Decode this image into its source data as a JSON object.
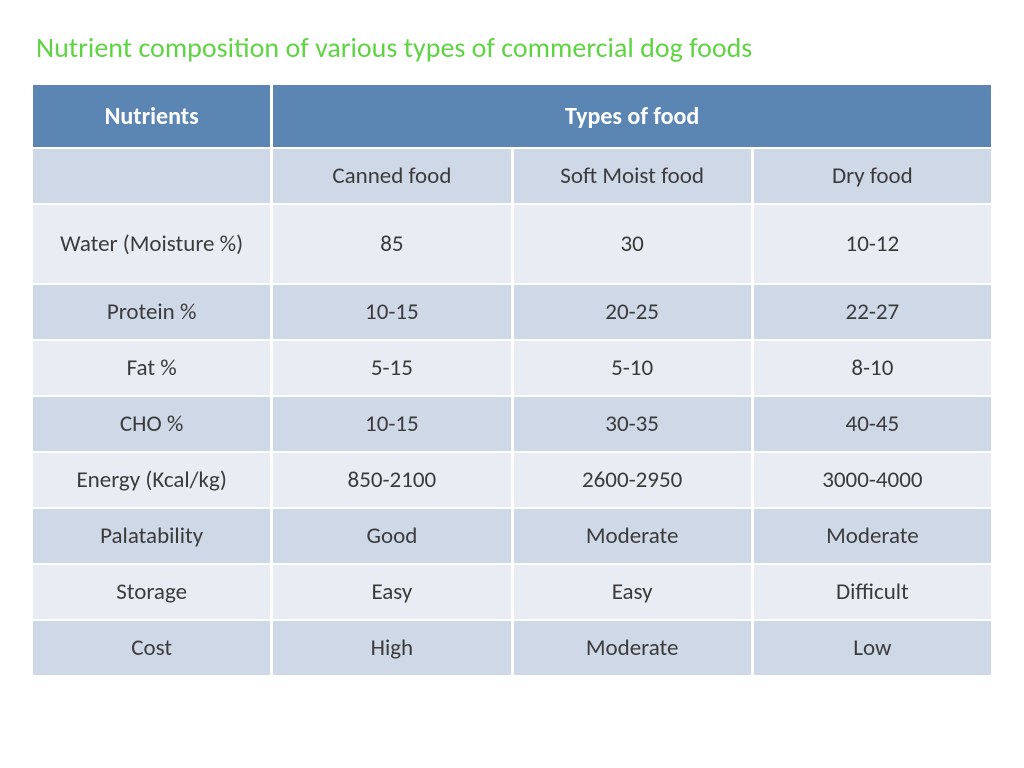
{
  "title": "Nutrient composition of various types of commercial dog foods",
  "title_color": "#5fd443",
  "table": {
    "header_bg": "#5b86b4",
    "header_text_color": "#ffffff",
    "row_alt_light": "#e8edf3",
    "row_alt_dark": "#cfd8e7",
    "cell_text_color": "#3b3b3b",
    "col1_header": "Nutrients",
    "col_span_header": "Types of food",
    "subheaders": [
      "Canned food",
      "Soft Moist food",
      "Dry food"
    ],
    "rows": [
      {
        "label": "Water (Moisture %)",
        "cells": [
          "85",
          "30",
          "10-12"
        ]
      },
      {
        "label": "Protein %",
        "cells": [
          "10-15",
          "20-25",
          "22-27"
        ]
      },
      {
        "label": "Fat %",
        "cells": [
          "5-15",
          "5-10",
          "8-10"
        ]
      },
      {
        "label": "CHO %",
        "cells": [
          "10-15",
          "30-35",
          "40-45"
        ]
      },
      {
        "label": "Energy (Kcal/kg)",
        "cells": [
          "850-2100",
          "2600-2950",
          "3000-4000"
        ]
      },
      {
        "label": "Palatability",
        "cells": [
          "Good",
          "Moderate",
          "Moderate"
        ]
      },
      {
        "label": "Storage",
        "cells": [
          "Easy",
          "Easy",
          "Difficult"
        ]
      },
      {
        "label": "Cost",
        "cells": [
          "High",
          "Moderate",
          "Low"
        ]
      }
    ]
  }
}
